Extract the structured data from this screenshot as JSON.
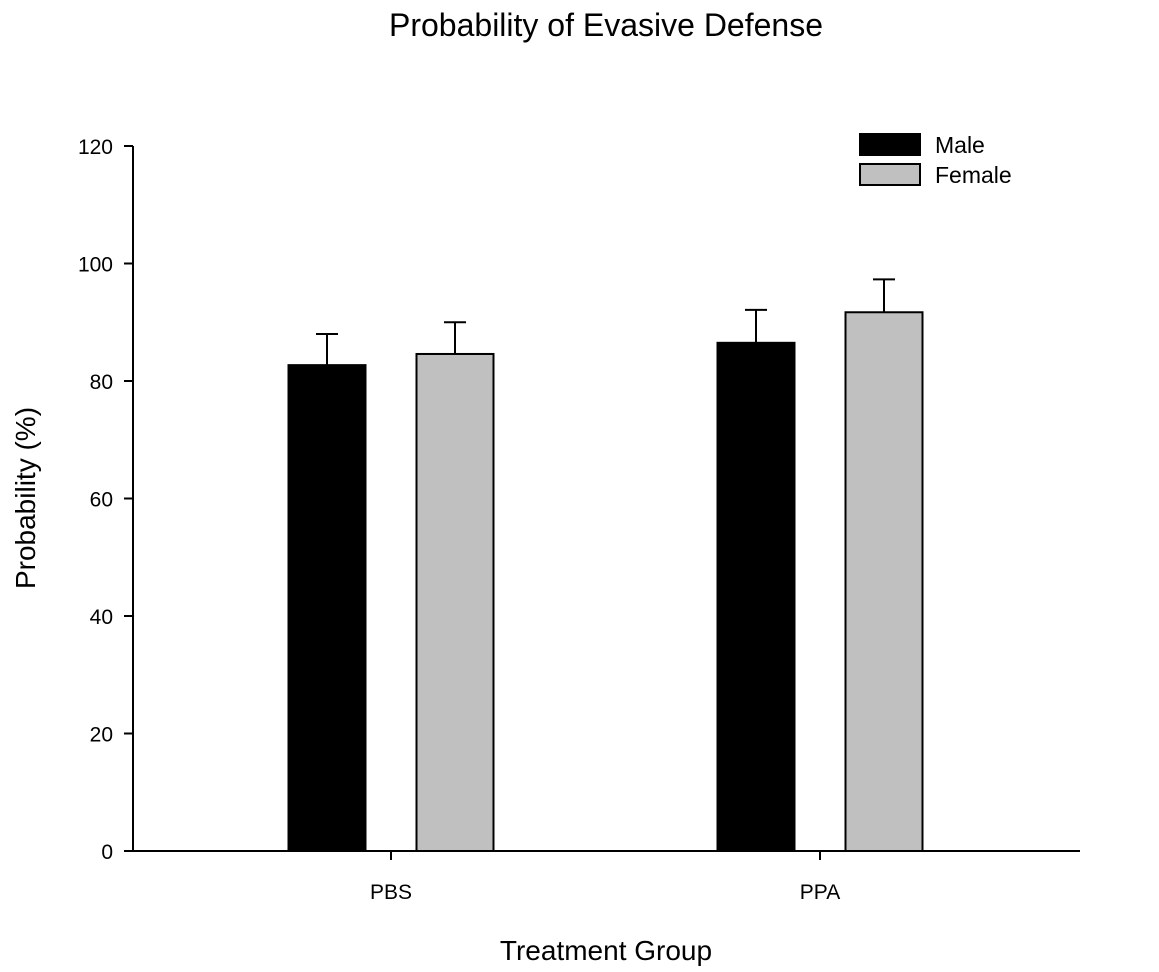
{
  "chart_data": {
    "type": "bar",
    "title": "Probability of Evasive Defense",
    "xlabel": "Treatment Group",
    "ylabel": "Probability (%)",
    "categories": [
      "PBS",
      "PPA"
    ],
    "ylim": [
      0,
      120
    ],
    "yticks": [
      0,
      20,
      40,
      60,
      80,
      100,
      120
    ],
    "grid": false,
    "legend_position": "top-right",
    "series": [
      {
        "name": "Male",
        "color": "#000000",
        "values": [
          82.7,
          86.5
        ],
        "error": [
          5.3,
          5.6
        ]
      },
      {
        "name": "Female",
        "color": "#c0c0c0",
        "values": [
          84.6,
          91.7
        ],
        "error": [
          5.4,
          5.6
        ]
      }
    ]
  }
}
